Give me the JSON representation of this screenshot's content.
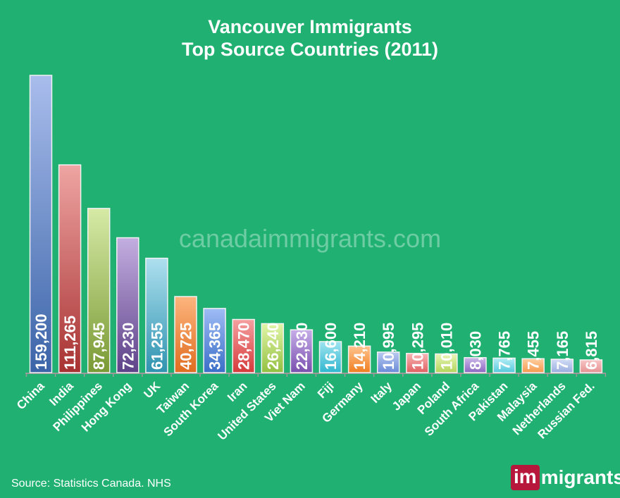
{
  "chart_data": {
    "type": "bar",
    "title": "Vancouver Immigrants\nTop Source Countries (2011)",
    "title_lines": [
      "Vancouver Immigrants",
      "Top Source Countries (2011)"
    ],
    "categories": [
      "China",
      "India",
      "Philippines",
      "Hong Kong",
      "UK",
      "Taiwan",
      "South Korea",
      "Iran",
      "United States",
      "Viet Nam",
      "Fiji",
      "Germany",
      "Italy",
      "Japan",
      "Poland",
      "South Africa",
      "Pakistan",
      "Malaysia",
      "Netherlands",
      "Russian Fed."
    ],
    "values": [
      159200,
      111265,
      87945,
      72230,
      61255,
      40725,
      34365,
      28470,
      26240,
      22930,
      16600,
      14210,
      10995,
      10295,
      10010,
      8030,
      7765,
      7455,
      7165,
      6815
    ],
    "data_labels": [
      "159,200",
      "111,265",
      "87,945",
      "72,230",
      "61,255",
      "40,725",
      "34,365",
      "28,470",
      "26,240",
      "22,930",
      "16,600",
      "14,210",
      "10,995",
      "10,295",
      "10,010",
      "8,030",
      "7,765",
      "7,455",
      "7,165",
      "6,815"
    ],
    "xlabel": "",
    "ylabel": "",
    "ylim": [
      0,
      159200
    ],
    "grid": false,
    "background": "#20b172",
    "bar_colors": [
      [
        "#a9bdec",
        "#3b64a8"
      ],
      [
        "#eea5a3",
        "#a83232"
      ],
      [
        "#d6eaa6",
        "#7a9a35"
      ],
      [
        "#c3aee0",
        "#5e4289"
      ],
      [
        "#aee0ef",
        "#2f93b0"
      ],
      [
        "#fdb57e",
        "#e06d20"
      ],
      [
        "#9fbcf5",
        "#3a6ec8"
      ],
      [
        "#f5a0a0",
        "#d63a3a"
      ],
      [
        "#e2f5a8",
        "#93c040"
      ],
      [
        "#c6aee8",
        "#7a4fae"
      ],
      [
        "#9ee4f0",
        "#30b6cf"
      ],
      [
        "#ffc48f",
        "#f07e20"
      ],
      [
        "#b9c9f0",
        "#6a8bd8"
      ],
      [
        "#f8b6b6",
        "#e06060"
      ],
      [
        "#e9f6b8",
        "#b3d45a"
      ],
      [
        "#cdb8ea",
        "#8a66c0"
      ],
      [
        "#b5eef6",
        "#55c8dc"
      ],
      [
        "#ffcfa0",
        "#f4984c"
      ],
      [
        "#d2dcf6",
        "#98acdf"
      ],
      [
        "#f8c6c6",
        "#e59090"
      ]
    ]
  },
  "watermark": "canadaimmigrants.com",
  "source": "Source: Statistics Canada. NHS",
  "logo": {
    "part1": "im",
    "part2": "migrants"
  }
}
